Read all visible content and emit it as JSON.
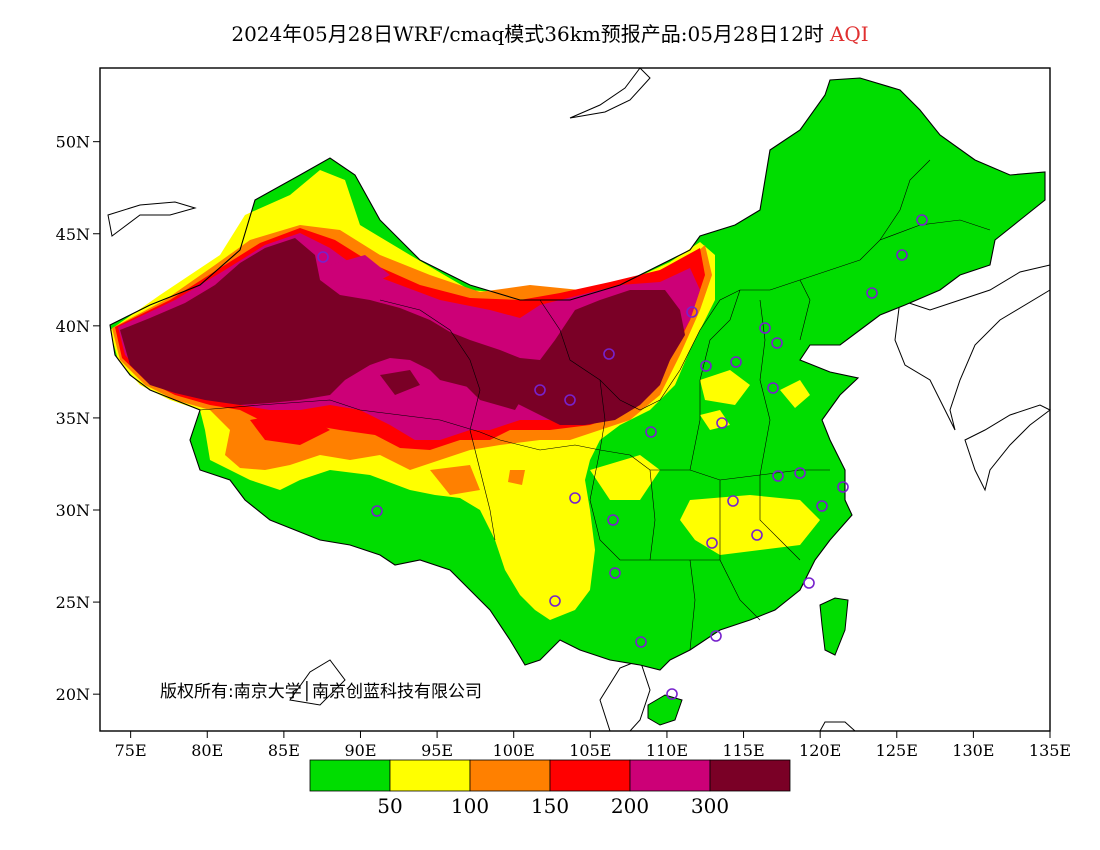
{
  "header": {
    "title": "2024年05月28日WRF/cmaq模式36km预报产品:05月28日12时",
    "variable": "AQI",
    "variable_color": "#e03030"
  },
  "map": {
    "lon_range": [
      73,
      135
    ],
    "lat_range": [
      18,
      54
    ],
    "y_ticks": [
      "20N",
      "25N",
      "30N",
      "35N",
      "40N",
      "45N",
      "50N"
    ],
    "x_ticks": [
      "75E",
      "80E",
      "85E",
      "90E",
      "95E",
      "100E",
      "105E",
      "110E",
      "115E",
      "120E",
      "125E",
      "130E",
      "135E"
    ],
    "copyright": "版权所有:南京大学│南京创蓝科技有限公司",
    "station_marker": "purple-circle"
  },
  "legend": {
    "colors": [
      "#00dd00",
      "#ffff00",
      "#ff8000",
      "#ff0000",
      "#cc0077",
      "#7a0026"
    ],
    "labels": [
      "50",
      "100",
      "150",
      "200",
      "300"
    ]
  }
}
